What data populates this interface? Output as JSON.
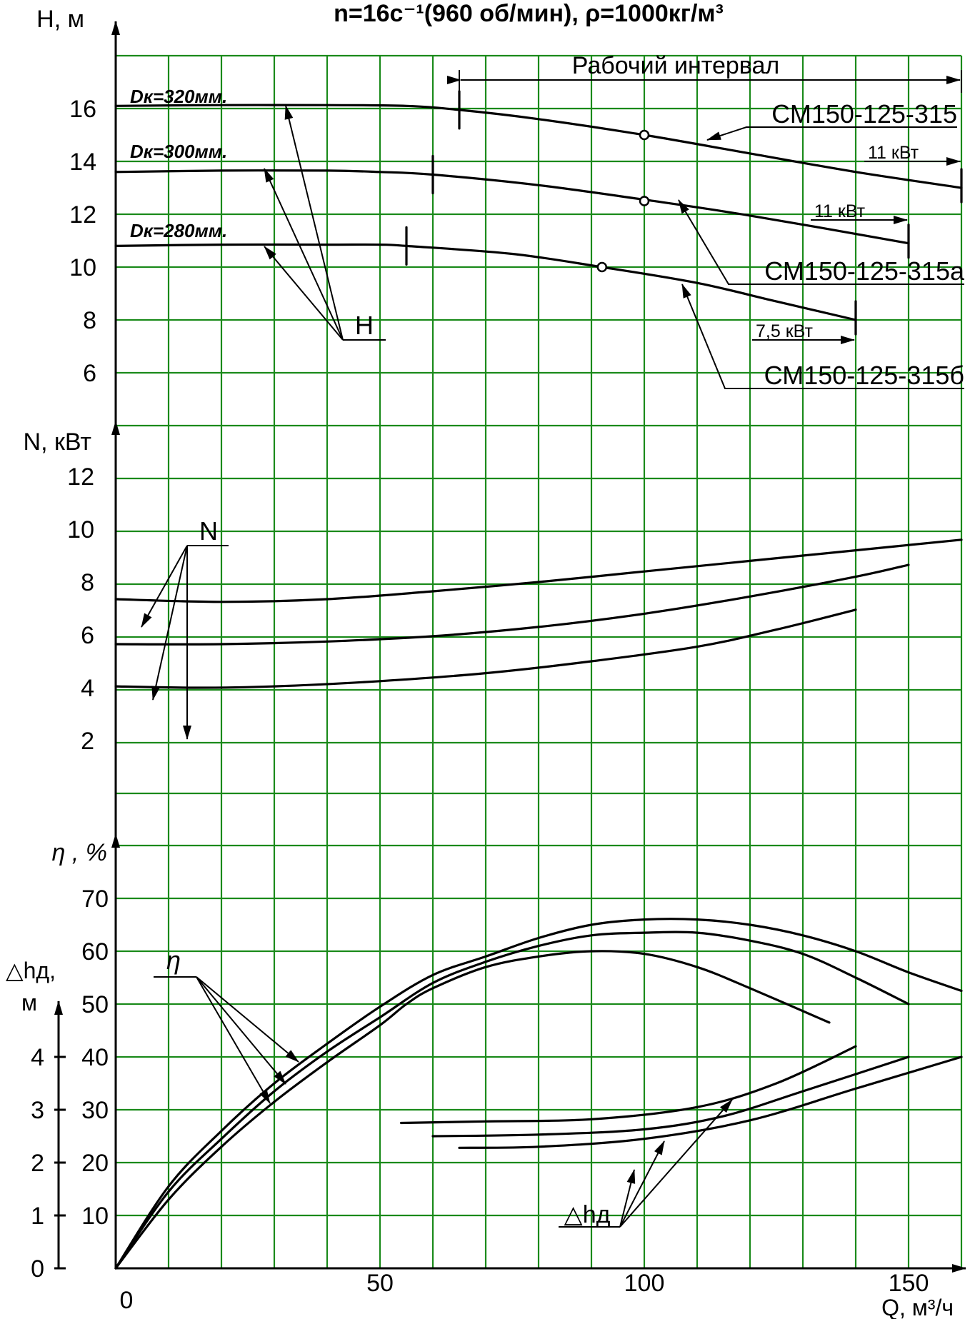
{
  "chart_data": {
    "type": "line",
    "title": "n=16c⁻¹(960 об/мин), ρ=1000кг/м³",
    "xlabel": "Q, м³/ч",
    "x_ticks": [
      "0",
      "50",
      "100",
      "150"
    ],
    "xlim": [
      0,
      160
    ],
    "panels": {
      "head": {
        "ylabel": "H, м",
        "ylim": [
          4,
          18
        ],
        "ticks": [
          "6",
          "8",
          "10",
          "12",
          "14",
          "16"
        ],
        "series": [
          {
            "name": "Dк=320мм.",
            "pump": "СМ150-125-315",
            "x": [
              0,
              20,
              40,
              55,
              65,
              80,
              100,
              120,
              140,
              160
            ],
            "y": [
              16.1,
              16.13,
              16.13,
              16.1,
              15.95,
              15.6,
              15.0,
              14.3,
              13.6,
              13.0
            ]
          },
          {
            "name": "Dк=300мм.",
            "pump": "СМ150-125-315а",
            "x": [
              0,
              20,
              40,
              50,
              60,
              80,
              100,
              120,
              150
            ],
            "y": [
              13.6,
              13.65,
              13.65,
              13.6,
              13.5,
              13.1,
              12.55,
              11.95,
              10.9
            ]
          },
          {
            "name": "Dк=280мм.",
            "pump": "СМ150-125-315б",
            "x": [
              0,
              20,
              40,
              50,
              55,
              75,
              92,
              110,
              125,
              140
            ],
            "y": [
              10.8,
              10.85,
              10.85,
              10.85,
              10.8,
              10.5,
              10.0,
              9.4,
              8.7,
              8.0
            ]
          }
        ],
        "bep_points": [
          [
            100,
            15.0
          ],
          [
            100,
            12.5
          ],
          [
            92,
            10.0
          ]
        ],
        "work_limits": [
          {
            "q_min": 65,
            "q_max": 160,
            "h_min": 15.95,
            "h_max": 13.0
          },
          {
            "q_min": 60,
            "q_max": 150,
            "h_min": 13.5,
            "h_max": 10.9
          },
          {
            "q_min": 55,
            "q_max": 140,
            "h_min": 10.8,
            "h_max": 8.0
          }
        ],
        "work_interval": "Рабочий интервал",
        "work_interval_range": [
          65,
          160
        ],
        "curve_label": "H",
        "pump_labels": [
          "СМ150-125-315",
          "СМ150-125-315а",
          "СМ150-125-315б"
        ],
        "power_labels": [
          "11 кВт",
          "11 кВт",
          "7,5 кВт"
        ]
      },
      "power": {
        "ylabel": "N, кВт",
        "ylim": [
          0,
          14
        ],
        "ticks": [
          "2",
          "4",
          "6",
          "8",
          "10",
          "12"
        ],
        "curve_label": "N",
        "series": [
          {
            "name": "Dк=320мм.",
            "x": [
              0,
              20,
              40,
              60,
              80,
              100,
              120,
              140,
              160
            ],
            "y": [
              7.35,
              7.25,
              7.35,
              7.65,
              8.0,
              8.4,
              8.8,
              9.2,
              9.6
            ]
          },
          {
            "name": "Dк=300мм.",
            "x": [
              0,
              20,
              40,
              60,
              80,
              100,
              120,
              140,
              150
            ],
            "y": [
              5.65,
              5.65,
              5.75,
              5.95,
              6.3,
              6.8,
              7.45,
              8.2,
              8.65
            ]
          },
          {
            "name": "Dк=280мм.",
            "x": [
              0,
              15,
              30,
              50,
              70,
              90,
              110,
              125,
              140
            ],
            "y": [
              4.05,
              4.0,
              4.05,
              4.25,
              4.55,
              5.0,
              5.55,
              6.2,
              6.95
            ]
          }
        ]
      },
      "efficiency": {
        "ylabel": "η , %",
        "ylim": [
          0,
          80
        ],
        "ticks": [
          "0",
          "10",
          "20",
          "30",
          "40",
          "50",
          "60",
          "70"
        ],
        "curve_label": "η",
        "series": [
          {
            "name": "Dк=320мм.",
            "x": [
              0,
              10,
              20,
              30,
              40,
              50,
              60,
              70,
              80,
              90,
              100,
              110,
              120,
              130,
              140,
              150,
              160
            ],
            "y": [
              0,
              15.5,
              26,
              35,
              42.5,
              49.5,
              55.5,
              59,
              62.5,
              65,
              66,
              66,
              65,
              63,
              60,
              56,
              52.5
            ]
          },
          {
            "name": "Dк=300мм.",
            "x": [
              0,
              10,
              20,
              30,
              40,
              50,
              60,
              70,
              80,
              90,
              100,
              110,
              120,
              130,
              140,
              150
            ],
            "y": [
              0,
              14.5,
              24.5,
              33.5,
              41,
              47.5,
              54,
              58,
              61,
              63,
              63.5,
              63.5,
              62,
              59.5,
              55,
              50
            ]
          },
          {
            "name": "Dк=280мм.",
            "x": [
              0,
              10,
              20,
              30,
              40,
              50,
              55,
              60,
              70,
              80,
              90,
              100,
              110,
              120,
              135
            ],
            "y": [
              0,
              13,
              23,
              31.5,
              39,
              46,
              50,
              53,
              57,
              59,
              60,
              59.5,
              57,
              53,
              46.5
            ]
          }
        ]
      },
      "npsh": {
        "ylabel": "△hд,",
        "yunit": "м",
        "ylim": [
          0,
          5
        ],
        "ticks": [
          "0",
          "1",
          "2",
          "3",
          "4"
        ],
        "curve_label": "△hд",
        "series": [
          {
            "name": "Dк=320мм.",
            "x": [
              65,
              80,
              100,
              120,
              140,
              160
            ],
            "y": [
              2.28,
              2.3,
              2.45,
              2.8,
              3.4,
              4.0
            ]
          },
          {
            "name": "Dк=300мм.",
            "x": [
              60,
              80,
              100,
              115,
              130,
              150
            ],
            "y": [
              2.5,
              2.53,
              2.63,
              2.88,
              3.35,
              4.0
            ]
          },
          {
            "name": "Dк=280мм.",
            "x": [
              54,
              70,
              90,
              110,
              125,
              140
            ],
            "y": [
              2.75,
              2.78,
              2.82,
              3.05,
              3.5,
              4.2
            ]
          }
        ]
      }
    }
  }
}
